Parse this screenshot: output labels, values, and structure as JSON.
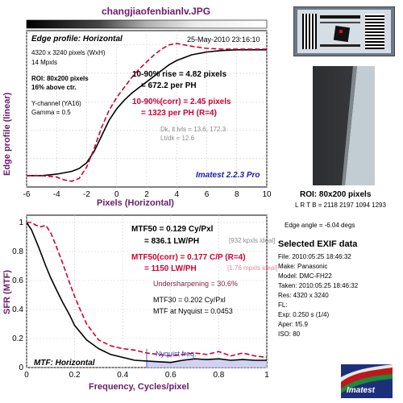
{
  "header": {
    "file_title": "changjiaofenbianlv.JPG"
  },
  "edge_panel": {
    "title": "Edge profile: Horizontal",
    "date": "25-May-2010 23:16:10",
    "info": [
      "4320 x 3240 pixels (WxH)",
      "14 Mpxls"
    ],
    "roi_line1": "ROI: 80x200 pixels",
    "roi_line2": "16% above ctr.",
    "channel": "Y-channel  (YA16)",
    "gamma": "Gamma = 0.5",
    "rise_line1": "10-90% rise = 4.82 pixels",
    "rise_line2": "= 672.2 per PH",
    "corr_line1": "10-90%(corr) = 2.45 pixels",
    "corr_line2": "= 1323 per PH   (R=4)",
    "dk_line1": "Dk, lt lvls = 13.6, 172.3",
    "dk_line2": "Lt/dk = 12.6",
    "imatest_version": "Imatest 2.2.3 Pro",
    "ylabel": "Edge profile (linear)",
    "xlabel": "Pixels (Horizontal)"
  },
  "mtf_panel": {
    "mtf50_line1": "MTF50 = 0.129 Cy/Pxl",
    "mtf50_line2": "= 836.1 LW/PH",
    "mtf50_note": "[932 kpxls ideal]",
    "corr_line1": "MTF50(corr) = 0.177 C/P   (R=4)",
    "corr_line2": "= 1150 LW/PH",
    "corr_note": "[1.76 mpxls ideal]",
    "undersharp": "Undersharpening = 30.6%",
    "mtf30": "MTF30 = 0.202 Cy/Pxl",
    "mtf_nyq": "MTF at Nyquist = 0.0453",
    "nyquist_label": "Nyquist freq.",
    "title": "MTF: Horizontal",
    "ylabel": "SFR (MTF)",
    "xlabel": "Frequency, Cycles/pixel"
  },
  "right_panel": {
    "roi_label": "ROI: 80x200 pixels",
    "lrtb": "L R T B = 2118 2197  1094 1293",
    "edge_angle": "Edge angle = -6.04 degs",
    "exif_title": "Selected EXIF data",
    "exif": [
      "File:  2010:05:25 18:46:32",
      "Make:  Panasonic",
      "Model:  DMC-FH22",
      "Taken:  2010:05:25 18:46:32",
      "Res:   4320 x 3240",
      "FL:",
      "Exp:   0.250 s  (1/4)",
      "Aper:   f/5.9",
      "ISO:   80"
    ],
    "logo_text": "Imatest"
  },
  "colors": {
    "title": "#6a1b6a",
    "corr": "#cc0033",
    "nyquist_fill": "#c9c9ee"
  },
  "chart_data": [
    {
      "type": "line",
      "title": "Edge profile: Horizontal",
      "xlabel": "Pixels (Horizontal)",
      "ylabel": "Edge profile (linear)",
      "xlim": [
        -6,
        10
      ],
      "xticks": [
        -6,
        -4,
        -2,
        0,
        2,
        4,
        6,
        8,
        10
      ],
      "grid": true,
      "series": [
        {
          "x": [
            -6,
            -5,
            -4,
            -3,
            -2.5,
            -2,
            -1.5,
            -1,
            -0.5,
            0,
            0.5,
            1,
            1.5,
            2,
            2.5,
            3,
            3.5,
            4,
            5,
            6,
            7,
            8,
            9,
            10
          ],
          "values": [
            0.08,
            0.08,
            0.09,
            0.11,
            0.13,
            0.17,
            0.25,
            0.36,
            0.47,
            0.55,
            0.61,
            0.66,
            0.7,
            0.74,
            0.78,
            0.82,
            0.86,
            0.89,
            0.93,
            0.95,
            0.96,
            0.965,
            0.965,
            0.965
          ]
        },
        {
          "x": [
            -6,
            -5,
            -4,
            -3.5,
            -3,
            -2.5,
            -2,
            -1.5,
            -1,
            -0.5,
            0,
            0.5,
            1,
            1.5,
            2,
            2.5,
            3,
            3.5,
            4,
            5,
            6,
            7,
            8,
            9,
            10
          ],
          "values": [
            0.08,
            0.08,
            0.07,
            0.05,
            0.04,
            0.06,
            0.14,
            0.27,
            0.42,
            0.54,
            0.63,
            0.7,
            0.77,
            0.83,
            0.88,
            0.93,
            0.97,
            1.0,
            1.01,
            0.99,
            0.975,
            0.97,
            0.97,
            0.97,
            0.97
          ]
        }
      ]
    },
    {
      "type": "line",
      "title": "MTF: Horizontal",
      "xlabel": "Frequency, Cycles/pixel",
      "ylabel": "SFR (MTF)",
      "xlim": [
        0,
        1
      ],
      "ylim": [
        0,
        1.05
      ],
      "xticks": [
        0,
        0.2,
        0.4,
        0.6,
        0.8,
        1
      ],
      "yticks": [
        0,
        0.2,
        0.4,
        0.6,
        0.8,
        1
      ],
      "grid": true,
      "nyquist": 0.5,
      "series": [
        {
          "x": [
            0,
            0.02,
            0.05,
            0.08,
            0.1,
            0.12,
            0.15,
            0.18,
            0.2,
            0.25,
            0.3,
            0.35,
            0.4,
            0.45,
            0.5,
            0.55,
            0.6,
            0.65,
            0.7,
            0.75,
            0.8,
            0.85,
            0.9,
            0.95,
            1.0
          ],
          "values": [
            1.0,
            0.95,
            0.83,
            0.7,
            0.62,
            0.55,
            0.45,
            0.36,
            0.29,
            0.19,
            0.13,
            0.09,
            0.07,
            0.05,
            0.045,
            0.04,
            0.035,
            0.05,
            0.06,
            0.055,
            0.06,
            0.05,
            0.055,
            0.05,
            0.05
          ]
        },
        {
          "x": [
            0,
            0.02,
            0.04,
            0.06,
            0.08,
            0.1,
            0.12,
            0.15,
            0.18,
            0.2,
            0.22,
            0.25,
            0.3,
            0.35,
            0.4,
            0.45,
            0.5,
            0.55,
            0.6,
            0.65,
            0.7,
            0.75,
            0.8,
            0.85,
            0.9,
            0.95,
            1.0
          ],
          "values": [
            1.0,
            1.0,
            0.98,
            0.97,
            0.98,
            0.93,
            0.85,
            0.72,
            0.58,
            0.49,
            0.41,
            0.3,
            0.19,
            0.15,
            0.13,
            0.12,
            0.1,
            0.09,
            0.08,
            0.09,
            0.1,
            0.09,
            0.11,
            0.08,
            0.1,
            0.08,
            0.07
          ]
        }
      ]
    }
  ]
}
